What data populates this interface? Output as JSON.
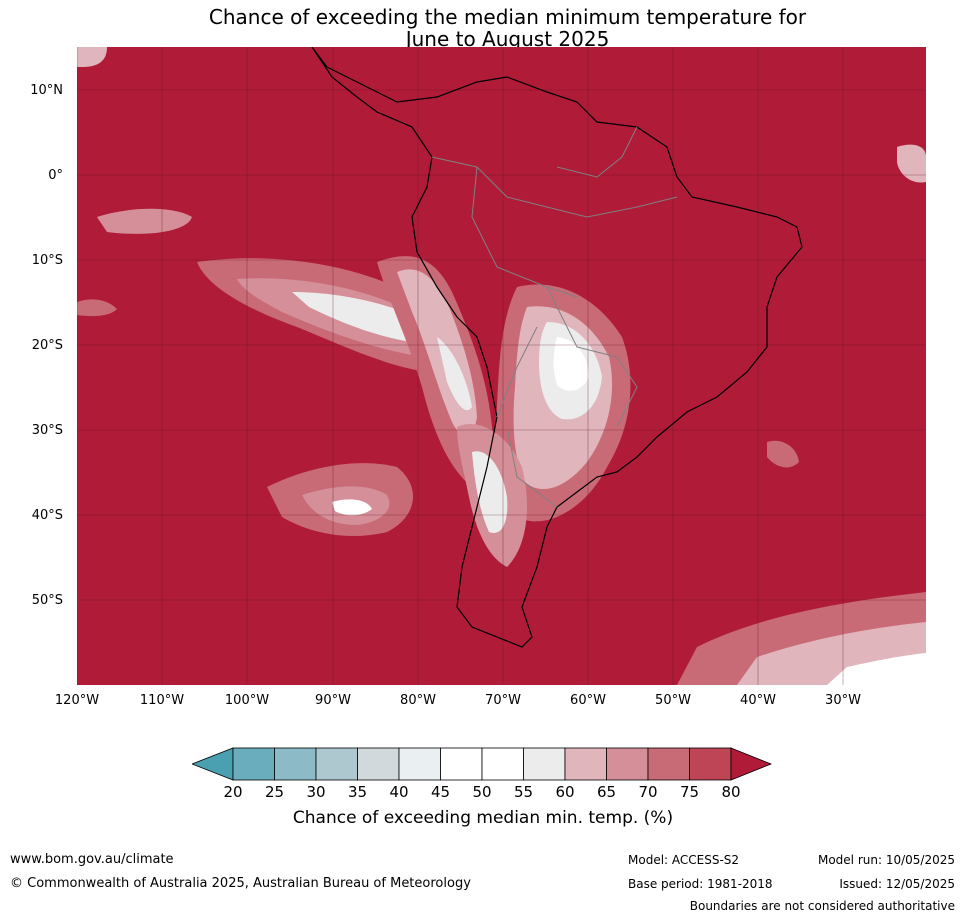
{
  "title": {
    "line1": "Chance of exceeding the median minimum temperature for",
    "line2": "June to August 2025"
  },
  "map": {
    "region": "South America",
    "projection": "equirectangular",
    "lon_range": [
      -120,
      -20
    ],
    "lat_range": [
      -60,
      15
    ],
    "gridlines": true,
    "dominant_color": "#b01c38",
    "lat_ticks": [
      "10°N",
      "0°",
      "10°S",
      "20°S",
      "30°S",
      "40°S",
      "50°S"
    ],
    "lon_ticks": [
      "120°W",
      "110°W",
      "100°W",
      "90°W",
      "80°W",
      "70°W",
      "60°W",
      "50°W",
      "40°W",
      "30°W"
    ]
  },
  "colorbar": {
    "ticks": [
      "20",
      "25",
      "30",
      "35",
      "40",
      "45",
      "50",
      "55",
      "60",
      "65",
      "70",
      "75",
      "80"
    ],
    "colors": [
      "#4a9fb0",
      "#6aadbd",
      "#8cbac6",
      "#adc9cf",
      "#d1d9dc",
      "#eaf0f2",
      "#ffffff",
      "#ffffff",
      "#ececec",
      "#e1b5bc",
      "#d48f98",
      "#c96b76",
      "#bd4556",
      "#b01c38"
    ],
    "under_color": "#4a9fb0",
    "over_color": "#b01c38",
    "label": "Chance of exceeding median min. temp. (%)"
  },
  "footer": {
    "website": "www.bom.gov.au/climate",
    "copyright": "© Commonwealth of Australia 2025, Australian Bureau of Meteorology",
    "model": "Model: ACCESS-S2",
    "base_period": "Base period: 1981-2018",
    "model_run": "Model run: 10/05/2025",
    "issued": "Issued: 12/05/2025",
    "disclaimer": "Boundaries are not considered authoritative"
  }
}
